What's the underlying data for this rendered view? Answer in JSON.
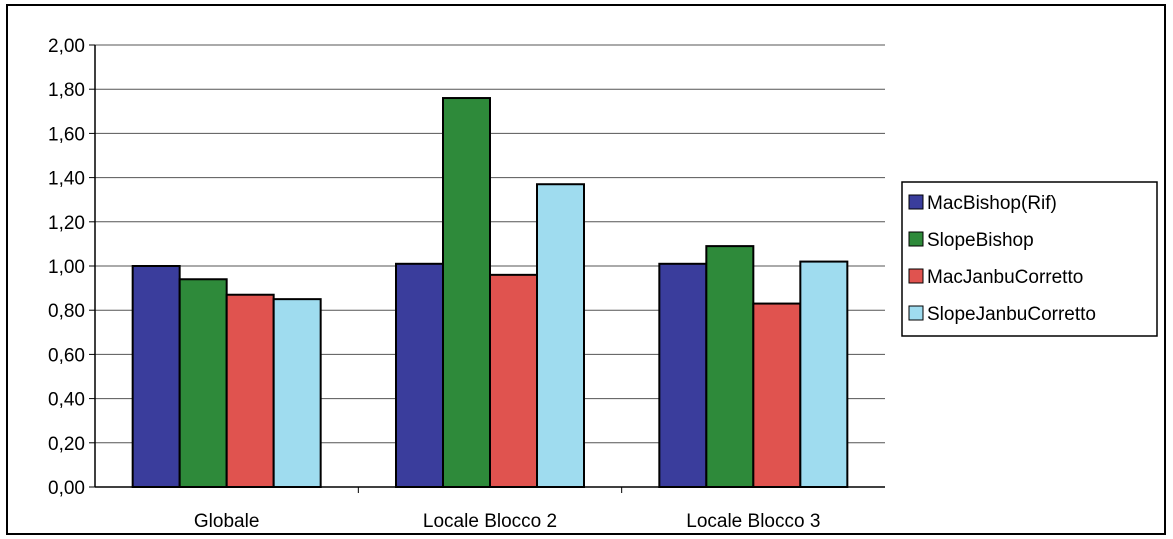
{
  "chart_data": {
    "type": "bar",
    "title": "",
    "xlabel": "",
    "ylabel": "",
    "categories": [
      "Globale",
      "Locale Blocco 2",
      "Locale Blocco 3"
    ],
    "series": [
      {
        "name": "MacBishop(Rif)",
        "color": "#3a3d9c",
        "values": [
          1.0,
          1.01,
          1.01
        ]
      },
      {
        "name": "SlopeBishop",
        "color": "#2e8a3a",
        "values": [
          0.94,
          1.76,
          1.09
        ]
      },
      {
        "name": "MacJanbuCorretto",
        "color": "#e0534f",
        "values": [
          0.87,
          0.96,
          0.83
        ]
      },
      {
        "name": "SlopeJanbuCorretto",
        "color": "#9fdcef",
        "values": [
          0.85,
          1.37,
          1.02
        ]
      }
    ],
    "ylim": [
      0,
      2.0
    ],
    "yticks": [
      "0,00",
      "0,20",
      "0,40",
      "0,60",
      "0,80",
      "1,00",
      "1,20",
      "1,40",
      "1,60",
      "1,80",
      "2,00"
    ],
    "grid": true,
    "legend_position": "right"
  }
}
